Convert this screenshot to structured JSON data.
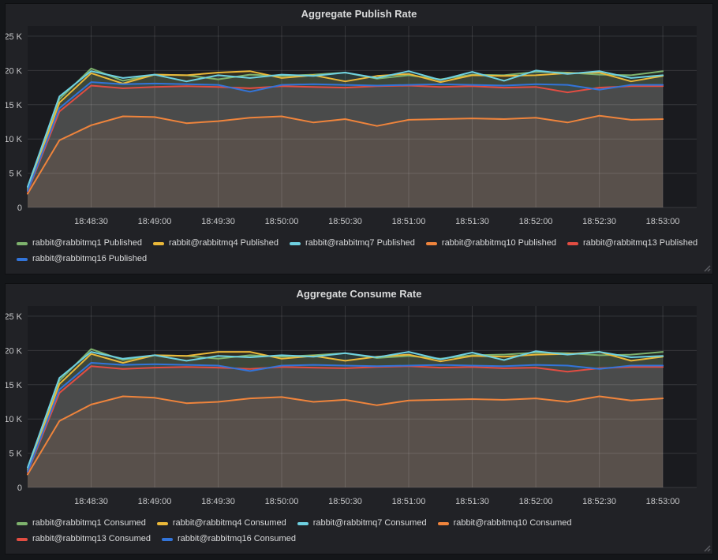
{
  "page": {
    "background": "#141619",
    "panel_background": "#212226"
  },
  "chart_data": [
    {
      "type": "area",
      "title": "Aggregate Publish Rate",
      "grid": true,
      "legend_position": "bottom-left",
      "fill_opacity": 0.1,
      "line_width": 2,
      "colors": {
        "plot_bg": "#1a1b1f",
        "grid": "rgba(255,255,255,0.12)",
        "tick_text": "#c8c9cb",
        "title_text": "#d8d9da"
      },
      "xlim": [
        "18:48:00",
        "18:53:16"
      ],
      "ylim": [
        0,
        25800
      ],
      "ytick_values": [
        0,
        5000,
        10000,
        15000,
        20000,
        25000
      ],
      "yticks": [
        "0",
        "5 K",
        "10 K",
        "15 K",
        "20 K",
        "25 K"
      ],
      "xticks": [
        "18:48:30",
        "18:49:00",
        "18:49:30",
        "18:50:00",
        "18:50:30",
        "18:51:00",
        "18:51:30",
        "18:52:00",
        "18:52:30",
        "18:53:00"
      ],
      "x": [
        "18:48:00",
        "18:48:15",
        "18:48:30",
        "18:48:45",
        "18:49:00",
        "18:49:15",
        "18:49:30",
        "18:49:45",
        "18:50:00",
        "18:50:15",
        "18:50:30",
        "18:50:45",
        "18:51:00",
        "18:51:15",
        "18:51:30",
        "18:51:45",
        "18:52:00",
        "18:52:15",
        "18:52:30",
        "18:52:45",
        "18:53:00"
      ],
      "series": [
        {
          "name": "rabbit@rabbitmq1 Published",
          "color": "#7EB26D",
          "values": [
            2700,
            15800,
            20300,
            18500,
            19400,
            19300,
            18700,
            19400,
            19200,
            19400,
            19700,
            18800,
            19300,
            18700,
            19400,
            19300,
            19800,
            19700,
            19400,
            19300,
            19900
          ]
        },
        {
          "name": "rabbit@rabbitmq4 Published",
          "color": "#EAB839",
          "values": [
            2500,
            15300,
            19600,
            18100,
            19400,
            19300,
            19700,
            19900,
            18900,
            19300,
            18400,
            19200,
            19500,
            18300,
            19300,
            19200,
            19300,
            19600,
            19700,
            18400,
            19200
          ]
        },
        {
          "name": "rabbit@rabbitmq7 Published",
          "color": "#6ED0E0",
          "values": [
            3000,
            16200,
            19900,
            18900,
            19400,
            18400,
            19300,
            18900,
            19400,
            19200,
            19700,
            18900,
            19900,
            18600,
            19800,
            18500,
            20000,
            19500,
            19900,
            18900,
            19300
          ]
        },
        {
          "name": "rabbit@rabbitmq10 Published",
          "color": "#EF843C",
          "values": [
            2000,
            9800,
            12000,
            13300,
            13200,
            12300,
            12600,
            13100,
            13300,
            12400,
            12900,
            11900,
            12800,
            12900,
            13000,
            12900,
            13100,
            12400,
            13400,
            12800,
            12900
          ]
        },
        {
          "name": "rabbit@rabbitmq13 Published",
          "color": "#E24D42",
          "values": [
            2300,
            14000,
            17800,
            17400,
            17600,
            17700,
            17600,
            17400,
            17700,
            17600,
            17500,
            17700,
            17800,
            17600,
            17700,
            17500,
            17600,
            16800,
            17500,
            17700,
            17700
          ]
        },
        {
          "name": "rabbit@rabbitmq16 Published",
          "color": "#3274D9",
          "values": [
            2400,
            14500,
            18300,
            18000,
            18100,
            18000,
            17900,
            16900,
            17900,
            18000,
            17900,
            17800,
            17900,
            18000,
            17900,
            17800,
            18000,
            17900,
            17200,
            17900,
            17900
          ]
        }
      ]
    },
    {
      "type": "area",
      "title": "Aggregate Consume Rate",
      "grid": true,
      "legend_position": "bottom-left",
      "fill_opacity": 0.1,
      "line_width": 2,
      "colors": {
        "plot_bg": "#1a1b1f",
        "grid": "rgba(255,255,255,0.12)",
        "tick_text": "#c8c9cb",
        "title_text": "#d8d9da"
      },
      "xlim": [
        "18:48:00",
        "18:53:16"
      ],
      "ylim": [
        0,
        25800
      ],
      "ytick_values": [
        0,
        5000,
        10000,
        15000,
        20000,
        25000
      ],
      "yticks": [
        "0",
        "5 K",
        "10 K",
        "15 K",
        "20 K",
        "25 K"
      ],
      "xticks": [
        "18:48:30",
        "18:49:00",
        "18:49:30",
        "18:50:00",
        "18:50:30",
        "18:51:00",
        "18:51:30",
        "18:52:00",
        "18:52:30",
        "18:53:00"
      ],
      "x": [
        "18:48:00",
        "18:48:15",
        "18:48:30",
        "18:48:45",
        "18:49:00",
        "18:49:15",
        "18:49:30",
        "18:49:45",
        "18:50:00",
        "18:50:15",
        "18:50:30",
        "18:50:45",
        "18:51:00",
        "18:51:15",
        "18:51:30",
        "18:51:45",
        "18:52:00",
        "18:52:15",
        "18:52:30",
        "18:52:45",
        "18:53:00"
      ],
      "series": [
        {
          "name": "rabbit@rabbitmq1 Consumed",
          "color": "#7EB26D",
          "values": [
            2600,
            15600,
            20200,
            18600,
            19300,
            19200,
            18800,
            19300,
            19100,
            19300,
            19600,
            18900,
            19200,
            18800,
            19300,
            19400,
            19700,
            19600,
            19300,
            19400,
            19800
          ]
        },
        {
          "name": "rabbit@rabbitmq4 Consumed",
          "color": "#EAB839",
          "values": [
            2400,
            15100,
            19500,
            18200,
            19300,
            19200,
            19800,
            19800,
            18800,
            19200,
            18500,
            19100,
            19400,
            18400,
            19200,
            19100,
            19400,
            19500,
            19800,
            18500,
            19100
          ]
        },
        {
          "name": "rabbit@rabbitmq7 Consumed",
          "color": "#6ED0E0",
          "values": [
            2900,
            16000,
            19800,
            18800,
            19300,
            18500,
            19200,
            19000,
            19300,
            19100,
            19600,
            19000,
            19800,
            18700,
            19700,
            18600,
            19900,
            19400,
            19800,
            19000,
            19200
          ]
        },
        {
          "name": "rabbit@rabbitmq10 Consumed",
          "color": "#EF843C",
          "values": [
            1900,
            9700,
            12100,
            13300,
            13100,
            12300,
            12500,
            13000,
            13200,
            12500,
            12800,
            12000,
            12700,
            12800,
            12900,
            12800,
            13000,
            12500,
            13300,
            12700,
            13000
          ]
        },
        {
          "name": "rabbit@rabbitmq13 Consumed",
          "color": "#E24D42",
          "values": [
            2200,
            13800,
            17700,
            17300,
            17500,
            17600,
            17500,
            17300,
            17600,
            17500,
            17400,
            17600,
            17700,
            17500,
            17600,
            17400,
            17500,
            16900,
            17400,
            17600,
            17600
          ]
        },
        {
          "name": "rabbit@rabbitmq16 Consumed",
          "color": "#3274D9",
          "values": [
            2300,
            14300,
            18200,
            17900,
            18000,
            17900,
            17800,
            17000,
            17800,
            17900,
            17800,
            17700,
            17800,
            17900,
            17800,
            17700,
            17900,
            17800,
            17300,
            17800,
            17800
          ]
        }
      ]
    }
  ]
}
